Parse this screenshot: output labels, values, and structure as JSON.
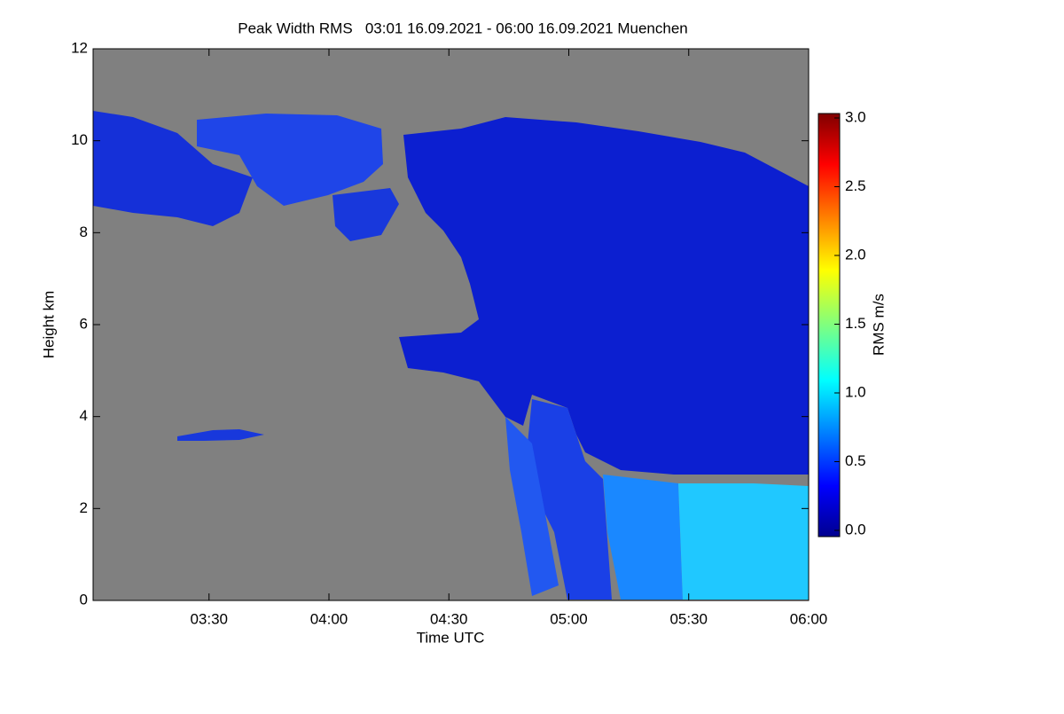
{
  "chart_data": {
    "type": "heatmap",
    "title": "Peak Width RMS   03:01 16.09.2021 - 06:00 16.09.2021 Muenchen",
    "x_label": "Time UTC",
    "y_label": "Height km",
    "xlim": [
      181,
      360
    ],
    "xticks": [
      {
        "value": 210,
        "label": "03:30"
      },
      {
        "value": 240,
        "label": "04:00"
      },
      {
        "value": 270,
        "label": "04:30"
      },
      {
        "value": 300,
        "label": "05:00"
      },
      {
        "value": 330,
        "label": "05:30"
      },
      {
        "value": 360,
        "label": "06:00"
      }
    ],
    "ylim": [
      0,
      12
    ],
    "yticks": [
      0,
      2,
      4,
      6,
      8,
      10,
      12
    ],
    "colorbar": {
      "label": "RMS m/s",
      "lim": [
        0,
        3
      ],
      "ticks": [
        {
          "value": 0,
          "label": "0.0"
        },
        0.5,
        {
          "value": 1,
          "label": "1.0"
        },
        1.5,
        {
          "value": 2,
          "label": "2.0"
        },
        2.5,
        {
          "value": 3,
          "label": "3.0"
        }
      ]
    }
  }
}
